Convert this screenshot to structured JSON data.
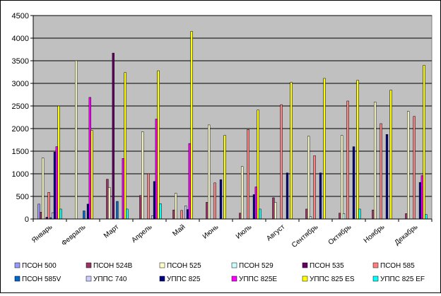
{
  "chart_data": {
    "type": "bar",
    "title": "",
    "xlabel": "",
    "ylabel": "",
    "ylim": [
      0,
      4500
    ],
    "yticks": [
      0,
      500,
      1000,
      1500,
      2000,
      2500,
      3000,
      3500,
      4000,
      4500
    ],
    "grid": true,
    "plot_background": "#c0c0c0",
    "legend_position": "bottom",
    "categories": [
      "Январь",
      "Февраль",
      "Март",
      "Апрель",
      "Май",
      "Июнь",
      "Июль",
      "Август",
      "Сентябрь",
      "Октябрь",
      "Ноябрь",
      "Декабрь"
    ],
    "series": [
      {
        "name": "ПСОН 500",
        "color": "#9999ff",
        "values": [
          330,
          0,
          0,
          0,
          0,
          0,
          0,
          0,
          0,
          0,
          0,
          0
        ]
      },
      {
        "name": "ПСОН 524В",
        "color": "#993366",
        "values": [
          150,
          0,
          880,
          520,
          200,
          370,
          130,
          470,
          220,
          130,
          200,
          120
        ]
      },
      {
        "name": "ПСОН 525",
        "color": "#ffffcc",
        "values": [
          1350,
          3500,
          700,
          1930,
          570,
          2080,
          1160,
          370,
          1830,
          1850,
          2590,
          2380
        ]
      },
      {
        "name": "ПСОН 529",
        "color": "#ccffff",
        "values": [
          0,
          0,
          0,
          0,
          0,
          0,
          0,
          0,
          50,
          120,
          0,
          0
        ]
      },
      {
        "name": "ПСОН 535",
        "color": "#660066",
        "values": [
          40,
          0,
          3670,
          0,
          0,
          0,
          0,
          0,
          0,
          0,
          0,
          0
        ]
      },
      {
        "name": "ПСОН 585",
        "color": "#ff8080",
        "values": [
          590,
          0,
          0,
          1000,
          190,
          800,
          1980,
          2530,
          1400,
          2610,
          2110,
          2270
        ]
      },
      {
        "name": "ПСОН 585V",
        "color": "#0066cc",
        "values": [
          30,
          180,
          390,
          0,
          0,
          0,
          0,
          0,
          0,
          0,
          0,
          0
        ]
      },
      {
        "name": "УППС 740",
        "color": "#ccccff",
        "values": [
          140,
          0,
          0,
          70,
          290,
          0,
          0,
          0,
          0,
          0,
          0,
          0
        ]
      },
      {
        "name": "УППС 825",
        "color": "#000080",
        "values": [
          1480,
          330,
          0,
          830,
          210,
          870,
          540,
          1020,
          1020,
          1600,
          1870,
          810
        ]
      },
      {
        "name": "УППС 825Е",
        "color": "#ff00ff",
        "values": [
          1600,
          2690,
          1340,
          2210,
          1670,
          0,
          710,
          0,
          0,
          0,
          0,
          960
        ]
      },
      {
        "name": "УППС 825 ES",
        "color": "#ffff00",
        "values": [
          2500,
          1960,
          3240,
          3280,
          4150,
          1850,
          2410,
          3020,
          3110,
          3070,
          2850,
          3400
        ]
      },
      {
        "name": "УППС 825 EF",
        "color": "#00ffff",
        "values": [
          220,
          0,
          220,
          340,
          0,
          0,
          220,
          0,
          0,
          220,
          0,
          100
        ]
      }
    ]
  }
}
